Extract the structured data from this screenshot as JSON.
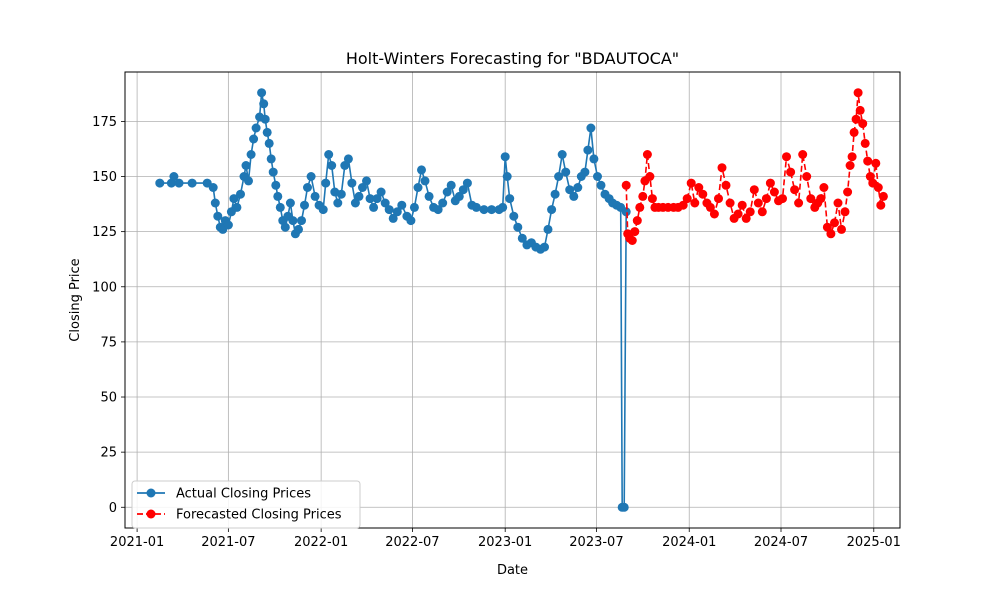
{
  "chart_data": {
    "type": "line",
    "title": "Holt-Winters Forecasting for \"BDAUTOCA\"",
    "xlabel": "Date",
    "ylabel": "Closing Price",
    "x_scale": "date",
    "xlim": [
      "2020-12-08",
      "2025-02-22"
    ],
    "ylim": [
      -9.4,
      197.4
    ],
    "x_ticks": [
      "2021-01",
      "2021-07",
      "2022-01",
      "2022-07",
      "2023-01",
      "2023-07",
      "2024-01",
      "2024-07",
      "2025-01"
    ],
    "y_ticks": [
      0,
      25,
      50,
      75,
      100,
      125,
      150,
      175
    ],
    "grid": true,
    "legend": {
      "placement": "lower-left",
      "entries": [
        "Actual Closing Prices",
        "Forecasted Closing Prices"
      ]
    },
    "series": [
      {
        "name": "Actual Closing Prices",
        "color": "#1f77b4",
        "line_style": "solid",
        "marker": "circle",
        "x": [
          "2021-02-15",
          "2021-03-10",
          "2021-03-15",
          "2021-03-25",
          "2021-04-20",
          "2021-05-20",
          "2021-06-01",
          "2021-06-05",
          "2021-06-10",
          "2021-06-15",
          "2021-06-20",
          "2021-06-25",
          "2021-07-01",
          "2021-07-07",
          "2021-07-12",
          "2021-07-18",
          "2021-07-25",
          "2021-08-01",
          "2021-08-05",
          "2021-08-10",
          "2021-08-15",
          "2021-08-20",
          "2021-08-25",
          "2021-09-01",
          "2021-09-05",
          "2021-09-09",
          "2021-09-12",
          "2021-09-16",
          "2021-09-20",
          "2021-09-24",
          "2021-09-28",
          "2021-10-03",
          "2021-10-07",
          "2021-10-12",
          "2021-10-17",
          "2021-10-22",
          "2021-10-27",
          "2021-11-01",
          "2021-11-06",
          "2021-11-11",
          "2021-11-17",
          "2021-11-23",
          "2021-11-29",
          "2021-12-05",
          "2021-12-12",
          "2021-12-20",
          "2021-12-28",
          "2022-01-05",
          "2022-01-10",
          "2022-01-16",
          "2022-01-22",
          "2022-01-28",
          "2022-02-03",
          "2022-02-10",
          "2022-02-17",
          "2022-02-24",
          "2022-03-03",
          "2022-03-10",
          "2022-03-17",
          "2022-03-24",
          "2022-04-01",
          "2022-04-08",
          "2022-04-15",
          "2022-04-22",
          "2022-04-30",
          "2022-05-08",
          "2022-05-16",
          "2022-05-24",
          "2022-06-01",
          "2022-06-10",
          "2022-06-20",
          "2022-06-28",
          "2022-07-05",
          "2022-07-12",
          "2022-07-19",
          "2022-07-26",
          "2022-08-03",
          "2022-08-12",
          "2022-08-21",
          "2022-08-30",
          "2022-09-08",
          "2022-09-16",
          "2022-09-24",
          "2022-10-02",
          "2022-10-10",
          "2022-10-18",
          "2022-10-27",
          "2022-11-05",
          "2022-11-20",
          "2022-12-05",
          "2022-12-20",
          "2022-12-27",
          "2023-01-01",
          "2023-01-05",
          "2023-01-10",
          "2023-01-18",
          "2023-01-26",
          "2023-02-04",
          "2023-02-13",
          "2023-02-22",
          "2023-03-03",
          "2023-03-12",
          "2023-03-20",
          "2023-03-27",
          "2023-04-03",
          "2023-04-10",
          "2023-04-17",
          "2023-04-24",
          "2023-05-01",
          "2023-05-09",
          "2023-05-17",
          "2023-05-25",
          "2023-06-01",
          "2023-06-08",
          "2023-06-14",
          "2023-06-20",
          "2023-06-26",
          "2023-07-03",
          "2023-07-10",
          "2023-07-18",
          "2023-07-26",
          "2023-08-02",
          "2023-08-10",
          "2023-08-18",
          "2023-08-21",
          "2023-08-25",
          "2023-08-29"
        ],
        "y": [
          147,
          147,
          150,
          147,
          147,
          147,
          145,
          138,
          132,
          127,
          126,
          130,
          128,
          134,
          140,
          136,
          142,
          150,
          155,
          148,
          160,
          167,
          172,
          177,
          188,
          183,
          176,
          170,
          165,
          158,
          152,
          146,
          141,
          136,
          130,
          127,
          132,
          138,
          130,
          124,
          126,
          130,
          137,
          145,
          150,
          141,
          137,
          135,
          147,
          160,
          155,
          143,
          138,
          142,
          155,
          158,
          147,
          138,
          141,
          145,
          148,
          140,
          136,
          140,
          143,
          138,
          135,
          131,
          134,
          137,
          132,
          130,
          136,
          145,
          153,
          148,
          141,
          136,
          135,
          138,
          143,
          146,
          139,
          141,
          144,
          147,
          137,
          136,
          135,
          135,
          135,
          136,
          159,
          150,
          140,
          132,
          127,
          122,
          119,
          120,
          118,
          117,
          118,
          126,
          135,
          142,
          150,
          160,
          152,
          144,
          141,
          145,
          150,
          152,
          162,
          172,
          158,
          150,
          146,
          142,
          140,
          138,
          137,
          136,
          0,
          0,
          134
        ]
      },
      {
        "name": "Forecasted Closing Prices",
        "color": "#ff0000",
        "line_style": "dashed",
        "marker": "circle",
        "x": [
          "2023-08-29",
          "2023-09-01",
          "2023-09-05",
          "2023-09-10",
          "2023-09-15",
          "2023-09-20",
          "2023-09-25",
          "2023-10-01",
          "2023-10-05",
          "2023-10-10",
          "2023-10-15",
          "2023-10-20",
          "2023-10-25",
          "2023-11-01",
          "2023-11-10",
          "2023-11-20",
          "2023-12-01",
          "2023-12-10",
          "2023-12-20",
          "2023-12-28",
          "2024-01-05",
          "2024-01-12",
          "2024-01-20",
          "2024-01-28",
          "2024-02-05",
          "2024-02-12",
          "2024-02-20",
          "2024-02-28",
          "2024-03-06",
          "2024-03-14",
          "2024-03-22",
          "2024-03-30",
          "2024-04-07",
          "2024-04-15",
          "2024-04-23",
          "2024-05-01",
          "2024-05-09",
          "2024-05-17",
          "2024-05-25",
          "2024-06-02",
          "2024-06-10",
          "2024-06-18",
          "2024-06-26",
          "2024-07-04",
          "2024-07-12",
          "2024-07-20",
          "2024-07-28",
          "2024-08-05",
          "2024-08-13",
          "2024-08-21",
          "2024-08-29",
          "2024-09-06",
          "2024-09-12",
          "2024-09-18",
          "2024-09-24",
          "2024-10-01",
          "2024-10-08",
          "2024-10-15",
          "2024-10-22",
          "2024-10-29",
          "2024-11-05",
          "2024-11-10",
          "2024-11-15",
          "2024-11-19",
          "2024-11-23",
          "2024-11-27",
          "2024-12-01",
          "2024-12-05",
          "2024-12-10",
          "2024-12-15",
          "2024-12-20",
          "2024-12-25",
          "2024-12-30",
          "2025-01-05",
          "2025-01-10",
          "2025-01-15",
          "2025-01-20"
        ],
        "y": [
          146,
          124,
          122,
          121,
          125,
          130,
          136,
          141,
          148,
          160,
          150,
          140,
          136,
          136,
          136,
          136,
          136,
          136,
          137,
          140,
          147,
          138,
          145,
          142,
          138,
          136,
          133,
          140,
          154,
          146,
          138,
          131,
          133,
          137,
          131,
          134,
          144,
          138,
          134,
          140,
          147,
          143,
          139,
          140,
          159,
          152,
          144,
          138,
          160,
          150,
          140,
          136,
          138,
          140,
          145,
          127,
          124,
          129,
          138,
          126,
          134,
          143,
          155,
          159,
          170,
          176,
          188,
          180,
          174,
          165,
          157,
          150,
          147,
          156,
          145,
          137,
          141
        ]
      }
    ]
  }
}
